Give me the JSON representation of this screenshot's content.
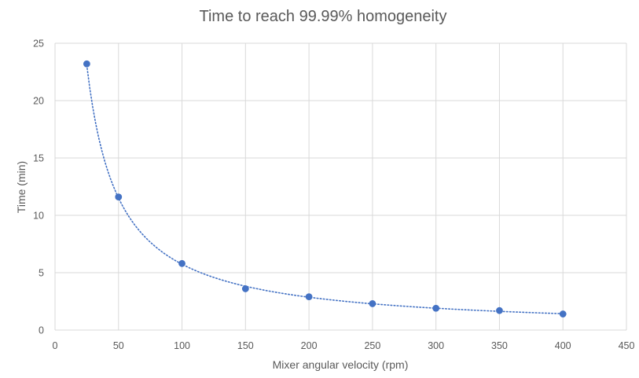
{
  "chart_data": {
    "type": "scatter",
    "title": "Time to reach 99.99% homogeneity",
    "xlabel": "Mixer angular velocity (rpm)",
    "ylabel": "Time (min)",
    "xlim": [
      0,
      450
    ],
    "ylim": [
      0,
      25
    ],
    "xticks": [
      "0",
      "50",
      "100",
      "150",
      "200",
      "250",
      "300",
      "350",
      "400",
      "450"
    ],
    "yticks": [
      "0",
      "5",
      "10",
      "15",
      "20",
      "25"
    ],
    "grid": true,
    "legend": "none",
    "trendline": "power, dotted",
    "colors": {
      "marker": "#4472C4",
      "trendline": "#4472C4",
      "grid": "#D9D9D9",
      "text": "#595959"
    },
    "series": [
      {
        "x": [
          25,
          50,
          100,
          150,
          200,
          250,
          300,
          350,
          400
        ],
        "y": [
          23.2,
          11.6,
          5.8,
          3.6,
          2.9,
          2.3,
          1.9,
          1.7,
          1.4
        ]
      }
    ]
  }
}
